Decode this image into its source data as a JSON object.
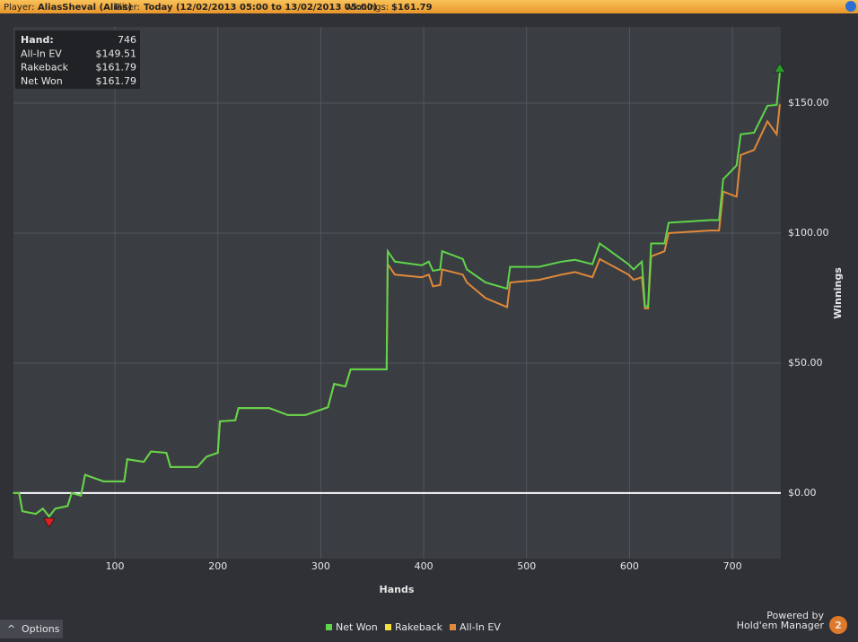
{
  "header": {
    "player_label": "Player:",
    "player": "AliasSheval (Alias)",
    "filter_label": "Filter:",
    "filter": "Today (12/02/2013 05:00 to 13/02/2013 05:00)",
    "winnings_label": "Winnings:",
    "winnings": "$161.79"
  },
  "info_box": {
    "rows": [
      [
        "Hand:",
        "746"
      ],
      [
        "All-In EV",
        "$149.51"
      ],
      [
        "Rakeback",
        "$161.79"
      ],
      [
        "Net Won",
        "$161.79"
      ]
    ]
  },
  "footer": {
    "options": "Options",
    "powered_by": "Powered by",
    "brand": "Hold'em Manager",
    "version": "2"
  },
  "chart_data": {
    "type": "line",
    "x_label": "Hands",
    "y_label": "Winnings",
    "x": [
      1,
      7,
      10,
      23,
      30,
      36,
      42,
      54,
      58,
      67,
      71,
      89,
      109,
      112,
      128,
      135,
      150,
      154,
      180,
      189,
      200,
      202,
      217,
      220,
      250,
      268,
      285,
      307,
      313,
      324,
      329,
      359,
      364,
      365,
      372,
      398,
      405,
      409,
      416,
      418,
      438,
      442,
      460,
      481,
      484,
      512,
      534,
      547,
      564,
      571,
      599,
      604,
      612,
      615,
      618,
      621,
      634,
      638,
      678,
      687,
      691,
      704,
      708,
      721,
      734,
      743,
      746
    ],
    "series": [
      {
        "name": "All-In EV",
        "color": "#e0893a",
        "values": [
          0,
          0,
          -7,
          -8,
          -6,
          -9,
          -6,
          -5,
          0,
          -1,
          7,
          4.5,
          4.5,
          13,
          12,
          16,
          15.5,
          10,
          10,
          14,
          15.5,
          27.6,
          28,
          32.7,
          32.7,
          30,
          30,
          33,
          42,
          41,
          47.6,
          47.6,
          47.6,
          88,
          84,
          83,
          84,
          79.5,
          80,
          86,
          84,
          81,
          75,
          71.5,
          81,
          82,
          84,
          85,
          83,
          90,
          84,
          82,
          83,
          71,
          71,
          91,
          93,
          100,
          101,
          101,
          116,
          114,
          130,
          132,
          143,
          138,
          149.51
        ]
      },
      {
        "name": "Net Won",
        "color": "#5fd64a",
        "values": [
          0,
          0,
          -7,
          -8,
          -6,
          -9,
          -6,
          -5,
          0,
          -1,
          7,
          4.5,
          4.5,
          13,
          12,
          16,
          15.5,
          10,
          10,
          14,
          15.5,
          27.6,
          28,
          32.7,
          32.7,
          30,
          30,
          33,
          42,
          41,
          47.6,
          47.6,
          47.6,
          93,
          89,
          87.6,
          89,
          85.5,
          86,
          93,
          90,
          86,
          81,
          78.6,
          87,
          87,
          89,
          89.7,
          88,
          96,
          88,
          86,
          89,
          72,
          71.7,
          96,
          96,
          104,
          105,
          105,
          120.7,
          126,
          138,
          138.6,
          149,
          149.3,
          161.79
        ]
      }
    ],
    "rakeback": {
      "name": "Rakeback",
      "color": "#f2e23c"
    },
    "xlim": [
      1.4,
      747
    ],
    "ylim": [
      -25.2,
      179.3
    ],
    "xticks": [
      100,
      200,
      300,
      400,
      500,
      600,
      700
    ],
    "yticks": [
      {
        "value": 0,
        "label": "$0.00"
      },
      {
        "value": 50,
        "label": "$50.00"
      },
      {
        "value": 100,
        "label": "$100.00"
      },
      {
        "value": 150,
        "label": "$150.00"
      }
    ],
    "grid": true,
    "min_marker_color": "#e02020",
    "max_marker_color": "#2a9a2a"
  }
}
